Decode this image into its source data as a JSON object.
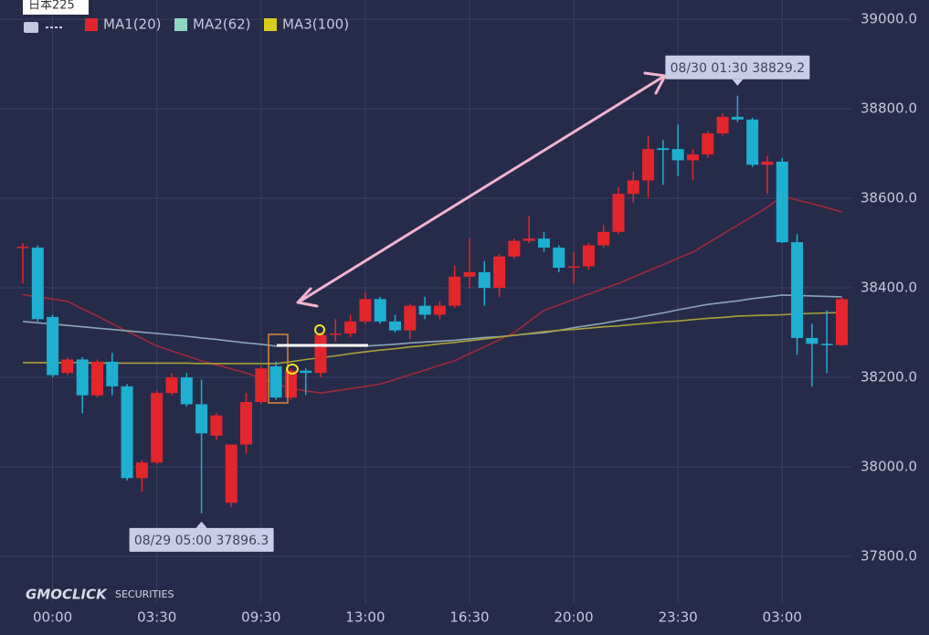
{
  "chart_data": {
    "type": "candlestick",
    "symbol": "日本225",
    "categories": [
      null,
      null,
      "00:00",
      null,
      null,
      null,
      null,
      null,
      null,
      "03:30",
      null,
      null,
      null,
      null,
      null,
      null,
      "09:30",
      null,
      null,
      null,
      null,
      null,
      null,
      "13:00",
      null,
      null,
      null,
      null,
      null,
      null,
      "16:30",
      null,
      null,
      null,
      null,
      null,
      null,
      "20:00",
      null,
      null,
      null,
      null,
      null,
      null,
      "23:30",
      null,
      null,
      null,
      null,
      null,
      null,
      "03:00",
      null,
      null,
      null,
      null
    ],
    "open": [
      38490,
      38490,
      38335,
      38210,
      38240,
      38160,
      38235,
      38180,
      37975,
      38010,
      38165,
      38200,
      38140,
      38070,
      37920,
      38050,
      38145,
      38225,
      38155,
      38215,
      38210,
      38295,
      38298,
      38325,
      38375,
      38325,
      38305,
      38360,
      38340,
      38360,
      38425,
      38435,
      38400,
      38470,
      38505,
      38510,
      38490,
      38445,
      38448,
      38495,
      38525,
      38610,
      38640,
      38712,
      38710,
      38685,
      38698,
      38745,
      38782,
      38776,
      38675,
      38682,
      38502,
      38288,
      38275,
      38272
    ],
    "high": [
      38500,
      38495,
      38340,
      38245,
      38245,
      38240,
      38255,
      38185,
      38015,
      38170,
      38210,
      38210,
      38195,
      38120,
      38050,
      38165,
      38225,
      38235,
      38220,
      38220,
      38300,
      38330,
      38340,
      38390,
      38380,
      38340,
      38365,
      38380,
      38370,
      38450,
      38510,
      38460,
      38475,
      38510,
      38560,
      38525,
      38495,
      38480,
      38500,
      38540,
      38625,
      38660,
      38740,
      38730,
      38765,
      38710,
      38750,
      38790,
      38829.2,
      38780,
      38695,
      38690,
      38520,
      38320,
      38350,
      38380
    ],
    "low": [
      38410,
      38325,
      38200,
      38205,
      38120,
      38155,
      38160,
      37970,
      37945,
      38005,
      38160,
      38135,
      37896.3,
      38060,
      37910,
      38030,
      38140,
      38150,
      38150,
      38160,
      38200,
      38280,
      38290,
      38320,
      38320,
      38300,
      38285,
      38330,
      38330,
      38355,
      38400,
      38360,
      38380,
      38465,
      38500,
      38480,
      38435,
      38410,
      38440,
      38490,
      38520,
      38590,
      38600,
      38630,
      38650,
      38640,
      38690,
      38740,
      38770,
      38670,
      38610,
      38500,
      38250,
      38180,
      38210,
      38270
    ],
    "close": [
      38492,
      38330,
      38205,
      38240,
      38160,
      38235,
      38180,
      37975,
      38010,
      38165,
      38200,
      38140,
      38075,
      38115,
      38050,
      38145,
      38220,
      38155,
      38215,
      38210,
      38295,
      38298,
      38325,
      38375,
      38325,
      38305,
      38360,
      38340,
      38360,
      38425,
      38435,
      38400,
      38470,
      38505,
      38510,
      38490,
      38445,
      38448,
      38495,
      38525,
      38610,
      38640,
      38710,
      38708,
      38685,
      38698,
      38745,
      38782,
      38776,
      38675,
      38682,
      38502,
      38288,
      38275,
      38272,
      38375
    ],
    "up_color": "#e3262b",
    "down_color": "#1eb0d0",
    "series": [
      {
        "name": "MA1(20)",
        "color": "#e3262b",
        "line_color": "#a3283a",
        "values": [
          38385,
          38380,
          38375,
          38370,
          38353,
          38337,
          38320,
          38303,
          38287,
          38270,
          38259,
          38248,
          38237,
          38228,
          38219,
          38210,
          38198,
          38187,
          38175,
          38170,
          38165,
          38170,
          38175,
          38180,
          38185,
          38195,
          38206,
          38216,
          38227,
          38237,
          38253,
          38268,
          38284,
          38300,
          38325,
          38350,
          38362,
          38374,
          38386,
          38398,
          38410,
          38424,
          38438,
          38452,
          38466,
          38480,
          38500,
          38520,
          38540,
          38560,
          38580,
          38605,
          38596,
          38588,
          38579,
          38570
        ]
      },
      {
        "name": "MA2(62)",
        "color": "#8fd6c4",
        "line_color": "#8aa6b8",
        "values": [
          38325,
          38322,
          38319,
          38316,
          38313,
          38310,
          38307,
          38304,
          38301,
          38298,
          38295,
          38292,
          38288,
          38285,
          38281,
          38277,
          38274,
          38270,
          38270,
          38270,
          38270,
          38270,
          38270,
          38270,
          38272,
          38274,
          38277,
          38279,
          38281,
          38283,
          38286,
          38289,
          38291,
          38294,
          38297,
          38300,
          38305,
          38311,
          38316,
          38321,
          38327,
          38332,
          38338,
          38344,
          38351,
          38357,
          38363,
          38367,
          38371,
          38376,
          38380,
          38384,
          38383,
          38382,
          38381,
          38380
        ]
      },
      {
        "name": "MA3(100)",
        "color": "#d8cc1c",
        "line_color": "#a9a236",
        "values": [
          38233,
          38233,
          38233,
          38233,
          38233,
          38232,
          38232,
          38232,
          38232,
          38232,
          38232,
          38232,
          38231,
          38231,
          38231,
          38231,
          38231,
          38231,
          38235,
          38240,
          38244,
          38248,
          38253,
          38257,
          38261,
          38264,
          38268,
          38271,
          38275,
          38278,
          38282,
          38286,
          38290,
          38294,
          38298,
          38302,
          38305,
          38307,
          38310,
          38313,
          38315,
          38318,
          38321,
          38324,
          38326,
          38329,
          38332,
          38334,
          38337,
          38338,
          38339,
          38340,
          38342,
          38343,
          38344,
          38345
        ]
      }
    ],
    "ylim": [
      37696,
      39043
    ],
    "yticks": [
      {
        "value": 37800,
        "label": "37800.0"
      },
      {
        "value": 38000,
        "label": "38000.0"
      },
      {
        "value": 38200,
        "label": "38200.0"
      },
      {
        "value": 38400,
        "label": "38400.0"
      },
      {
        "value": 38600,
        "label": "38600.0"
      },
      {
        "value": 38800,
        "label": "38800.0"
      },
      {
        "value": 39000,
        "label": "39000.0"
      }
    ],
    "grid": true,
    "annotations": {
      "high": "08/30 01:30 38829.2",
      "low": "08/29 05:00 37896.3"
    },
    "brand": {
      "name": "GMOCLICK",
      "suffix": "SECURITIES"
    }
  }
}
